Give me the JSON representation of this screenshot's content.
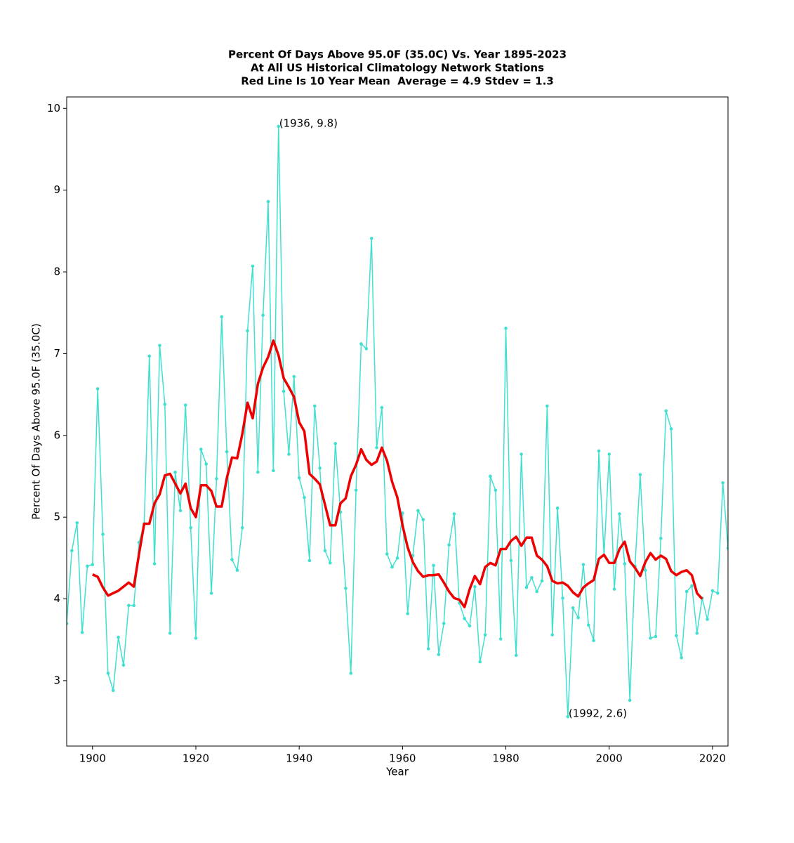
{
  "chart_data": {
    "type": "line",
    "title": [
      "Percent Of Days Above 95.0F (35.0C) Vs. Year 1895-2023",
      "At All US Historical Climatology Network Stations",
      "Red Line Is 10 Year Mean  Average = 4.9 Stdev = 1.3"
    ],
    "xlabel": "Year",
    "ylabel": "Percent Of Days Above 95.0F (35.0C)",
    "xlim": [
      1895,
      2023
    ],
    "ylim": [
      2.2,
      10.14
    ],
    "xticks": [
      1900,
      1920,
      1940,
      1960,
      1980,
      2000,
      2020
    ],
    "yticks": [
      3,
      4,
      5,
      6,
      7,
      8,
      9,
      10
    ],
    "grid": false,
    "series": [
      {
        "color": "#40e0d0",
        "markers": true,
        "linewidth": 1.5,
        "x": [
          1895,
          1896,
          1897,
          1898,
          1899,
          1900,
          1901,
          1902,
          1903,
          1904,
          1905,
          1906,
          1907,
          1908,
          1909,
          1910,
          1911,
          1912,
          1913,
          1914,
          1915,
          1916,
          1917,
          1918,
          1919,
          1920,
          1921,
          1922,
          1923,
          1924,
          1925,
          1926,
          1927,
          1928,
          1929,
          1930,
          1931,
          1932,
          1933,
          1934,
          1935,
          1936,
          1937,
          1938,
          1939,
          1940,
          1941,
          1942,
          1943,
          1944,
          1945,
          1946,
          1947,
          1948,
          1949,
          1950,
          1951,
          1952,
          1953,
          1954,
          1955,
          1956,
          1957,
          1958,
          1959,
          1960,
          1961,
          1962,
          1963,
          1964,
          1965,
          1966,
          1967,
          1968,
          1969,
          1970,
          1971,
          1972,
          1973,
          1974,
          1975,
          1976,
          1977,
          1978,
          1979,
          1980,
          1981,
          1982,
          1983,
          1984,
          1985,
          1986,
          1987,
          1988,
          1989,
          1990,
          1991,
          1992,
          1993,
          1994,
          1995,
          1996,
          1997,
          1998,
          1999,
          2000,
          2001,
          2002,
          2003,
          2004,
          2005,
          2006,
          2007,
          2008,
          2009,
          2010,
          2011,
          2012,
          2013,
          2014,
          2015,
          2016,
          2017,
          2018,
          2019,
          2020,
          2021,
          2022,
          2023
        ],
        "values": [
          3.7,
          4.59,
          4.93,
          3.59,
          4.4,
          4.42,
          6.57,
          4.79,
          3.09,
          2.88,
          3.53,
          3.19,
          3.92,
          3.92,
          4.69,
          4.92,
          6.97,
          4.43,
          7.1,
          6.38,
          3.58,
          5.55,
          5.08,
          6.37,
          4.87,
          3.52,
          5.83,
          5.65,
          4.07,
          5.47,
          7.45,
          5.8,
          4.48,
          4.35,
          4.87,
          7.28,
          8.07,
          5.55,
          7.47,
          8.86,
          5.57,
          9.78,
          6.54,
          5.77,
          6.72,
          5.48,
          5.24,
          4.47,
          6.36,
          5.6,
          4.59,
          4.44,
          5.9,
          5.06,
          4.13,
          3.09,
          5.33,
          7.12,
          7.06,
          8.41,
          5.85,
          6.34,
          4.55,
          4.39,
          4.5,
          5.05,
          3.82,
          4.53,
          5.08,
          4.97,
          3.39,
          4.41,
          3.32,
          3.7,
          4.66,
          5.04,
          3.95,
          3.76,
          3.67,
          4.15,
          3.23,
          3.56,
          5.5,
          5.33,
          3.51,
          7.31,
          4.47,
          3.31,
          5.77,
          4.14,
          4.26,
          4.09,
          4.22,
          6.36,
          3.56,
          5.11,
          4.01,
          2.56,
          3.89,
          3.77,
          4.42,
          3.68,
          3.49,
          5.81,
          4.53,
          5.77,
          4.12,
          5.04,
          4.43,
          2.76,
          4.4,
          5.52,
          4.35,
          3.52,
          3.54,
          4.74,
          6.3,
          6.08,
          3.55,
          3.28,
          4.09,
          4.16,
          3.58,
          4.01,
          3.75,
          4.1,
          4.07,
          5.42,
          4.62
        ]
      },
      {
        "color": "#ee0000",
        "markers": false,
        "linewidth": 3.5,
        "x": [
          1900,
          1901,
          1902,
          1903,
          1904,
          1905,
          1906,
          1907,
          1908,
          1909,
          1910,
          1911,
          1912,
          1913,
          1914,
          1915,
          1916,
          1917,
          1918,
          1919,
          1920,
          1921,
          1922,
          1923,
          1924,
          1925,
          1926,
          1927,
          1928,
          1929,
          1930,
          1931,
          1932,
          1933,
          1934,
          1935,
          1936,
          1937,
          1938,
          1939,
          1940,
          1941,
          1942,
          1943,
          1944,
          1945,
          1946,
          1947,
          1948,
          1949,
          1950,
          1951,
          1952,
          1953,
          1954,
          1955,
          1956,
          1957,
          1958,
          1959,
          1960,
          1961,
          1962,
          1963,
          1964,
          1965,
          1966,
          1967,
          1968,
          1969,
          1970,
          1971,
          1972,
          1973,
          1974,
          1975,
          1976,
          1977,
          1978,
          1979,
          1980,
          1981,
          1982,
          1983,
          1984,
          1985,
          1986,
          1987,
          1988,
          1989,
          1990,
          1991,
          1992,
          1993,
          1994,
          1995,
          1996,
          1997,
          1998,
          1999,
          2000,
          2001,
          2002,
          2003,
          2004,
          2005,
          2006,
          2007,
          2008,
          2009,
          2010,
          2011,
          2012,
          2013,
          2014,
          2015,
          2016,
          2017,
          2018
        ],
        "values": [
          4.3,
          4.27,
          4.14,
          4.04,
          4.07,
          4.1,
          4.15,
          4.2,
          4.15,
          4.55,
          4.92,
          4.92,
          5.17,
          5.28,
          5.51,
          5.53,
          5.41,
          5.29,
          5.41,
          5.11,
          5.0,
          5.39,
          5.39,
          5.32,
          5.13,
          5.13,
          5.48,
          5.73,
          5.72,
          6.02,
          6.4,
          6.21,
          6.63,
          6.83,
          6.96,
          7.16,
          6.98,
          6.7,
          6.59,
          6.47,
          6.16,
          6.05,
          5.53,
          5.47,
          5.4,
          5.15,
          4.9,
          4.9,
          5.17,
          5.23,
          5.5,
          5.64,
          5.83,
          5.7,
          5.64,
          5.68,
          5.85,
          5.69,
          5.43,
          5.24,
          4.9,
          4.63,
          4.45,
          4.34,
          4.27,
          4.29,
          4.29,
          4.3,
          4.2,
          4.09,
          4.01,
          3.99,
          3.9,
          4.12,
          4.28,
          4.18,
          4.39,
          4.44,
          4.41,
          4.61,
          4.61,
          4.71,
          4.76,
          4.65,
          4.75,
          4.75,
          4.53,
          4.48,
          4.4,
          4.22,
          4.19,
          4.2,
          4.16,
          4.08,
          4.03,
          4.14,
          4.19,
          4.23,
          4.49,
          4.54,
          4.44,
          4.44,
          4.61,
          4.7,
          4.46,
          4.38,
          4.28,
          4.45,
          4.56,
          4.48,
          4.53,
          4.49,
          4.34,
          4.29,
          4.33,
          4.35,
          4.29,
          4.07,
          4.0
        ]
      }
    ],
    "annotations": [
      {
        "text": "(1936, 9.8)",
        "x": 1936,
        "y": 9.78
      },
      {
        "text": "(1992, 2.6)",
        "x": 1992,
        "y": 2.56
      }
    ]
  }
}
